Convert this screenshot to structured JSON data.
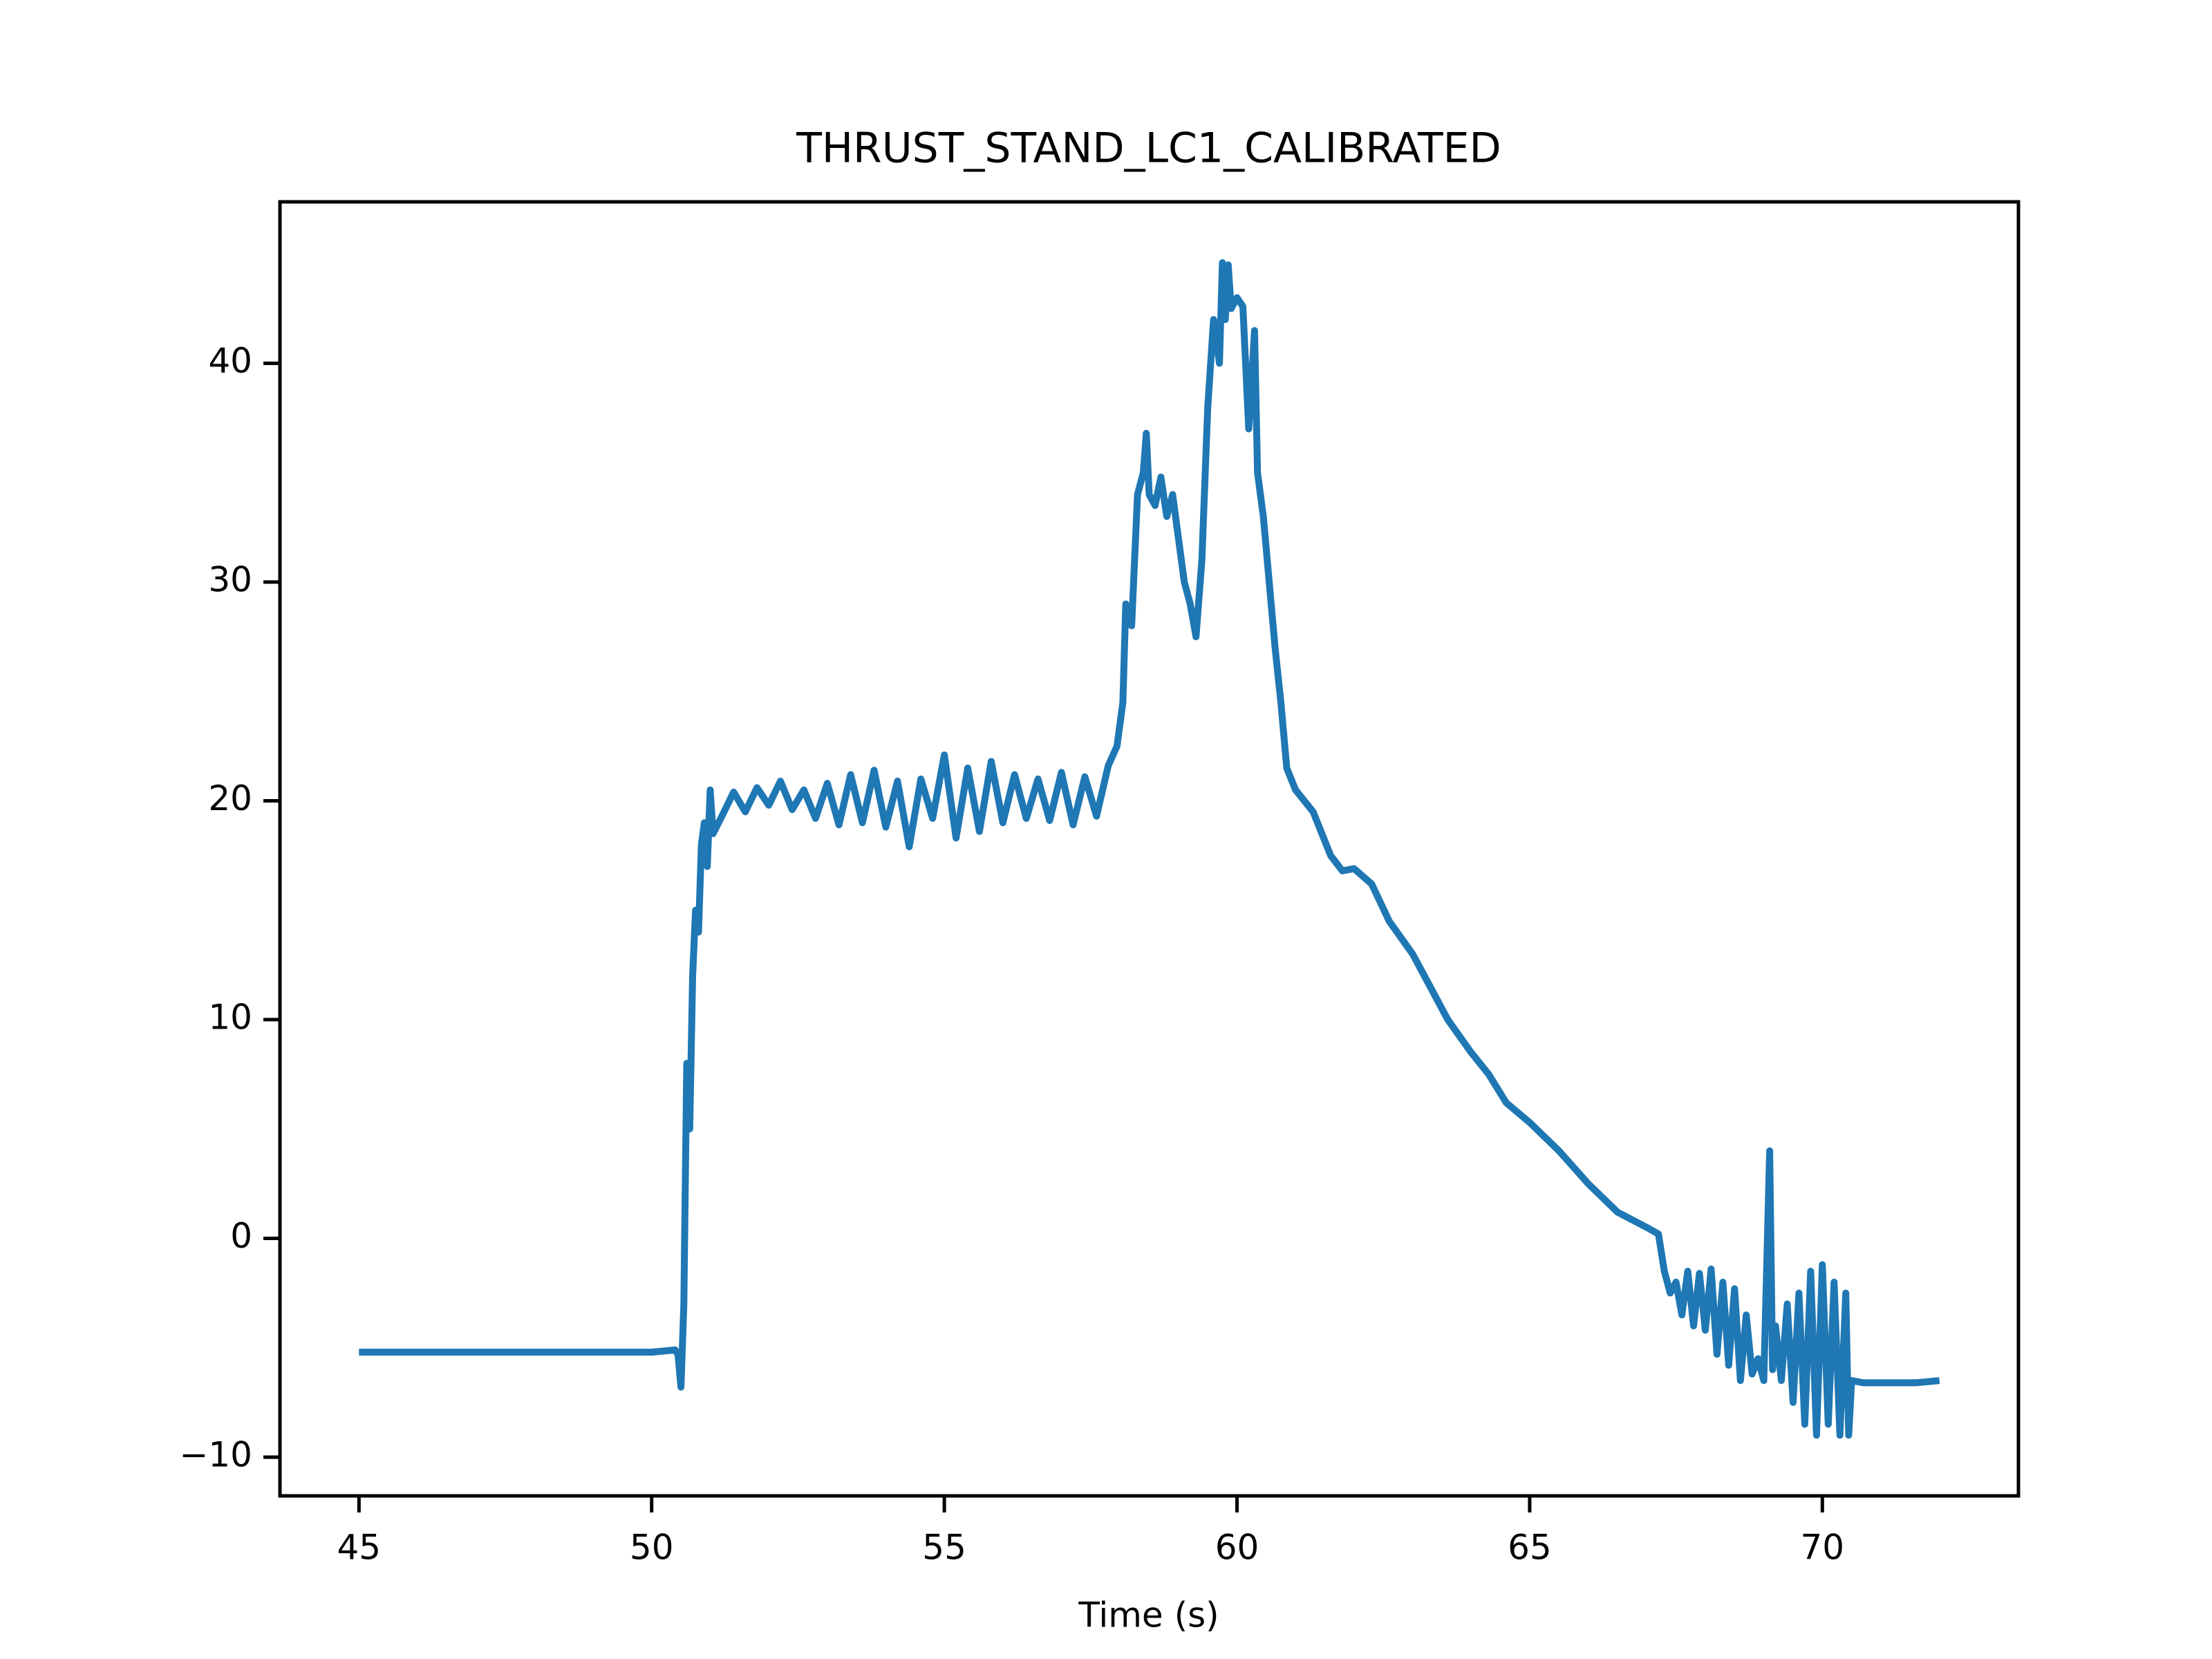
{
  "chart_data": {
    "type": "line",
    "title": "THRUST_STAND_LC1_CALIBRATED",
    "x_label": "Time (s)",
    "x": [
      45,
      46,
      47,
      48,
      49,
      50,
      50.4,
      50.45,
      50.5,
      50.55,
      50.6,
      50.65,
      50.7,
      50.75,
      50.8,
      50.85,
      50.9,
      50.95,
      51.0,
      51.05,
      51.2,
      51.4,
      51.6,
      51.8,
      52.0,
      52.2,
      52.4,
      52.6,
      52.8,
      53.0,
      53.2,
      53.4,
      53.6,
      53.8,
      54.0,
      54.2,
      54.4,
      54.6,
      54.8,
      55.0,
      55.2,
      55.4,
      55.6,
      55.8,
      56.0,
      56.2,
      56.4,
      56.6,
      56.8,
      57.0,
      57.2,
      57.4,
      57.6,
      57.8,
      57.95,
      58.05,
      58.1,
      58.2,
      58.3,
      58.4,
      58.45,
      58.5,
      58.6,
      58.7,
      58.8,
      58.9,
      59.0,
      59.1,
      59.2,
      59.3,
      59.4,
      59.5,
      59.6,
      59.7,
      59.75,
      59.8,
      59.85,
      59.9,
      60.0,
      60.1,
      60.2,
      60.3,
      60.35,
      60.45,
      60.55,
      60.65,
      60.75,
      60.85,
      61.0,
      61.3,
      61.6,
      61.8,
      62.0,
      62.3,
      62.6,
      63.0,
      63.3,
      63.6,
      64.0,
      64.3,
      64.6,
      65.0,
      65.5,
      66.0,
      66.5,
      67.0,
      67.2,
      67.3,
      67.4,
      67.5,
      67.6,
      67.7,
      67.8,
      67.9,
      68.0,
      68.1,
      68.2,
      68.3,
      68.4,
      68.5,
      68.6,
      68.7,
      68.8,
      68.9,
      69.0,
      69.1,
      69.15,
      69.2,
      69.3,
      69.4,
      69.5,
      69.6,
      69.7,
      69.8,
      69.9,
      70.0,
      70.1,
      70.2,
      70.3,
      70.4,
      70.45,
      70.5,
      70.7,
      71.2,
      71.6,
      72.0
    ],
    "series": [
      {
        "color": "#1f77b4",
        "values": [
          -5.2,
          -5.2,
          -5.2,
          -5.2,
          -5.2,
          -5.2,
          -5.1,
          -5.3,
          -6.8,
          -3,
          8,
          5,
          12,
          15,
          14,
          18,
          19,
          17,
          20.5,
          18.5,
          19.3,
          20.4,
          19.5,
          20.6,
          19.8,
          20.9,
          19.6,
          20.5,
          19.2,
          20.8,
          18.9,
          21.2,
          19.0,
          21.4,
          18.8,
          20.9,
          17.9,
          21.0,
          19.2,
          22.1,
          18.3,
          21.5,
          18.6,
          21.8,
          19.0,
          21.2,
          19.2,
          21.0,
          19.1,
          21.3,
          18.9,
          21.1,
          19.3,
          21.6,
          22.5,
          24.5,
          29,
          28,
          34,
          35,
          36.8,
          34,
          33.5,
          34.8,
          33,
          34,
          32,
          30,
          29,
          27.5,
          31,
          38,
          42,
          40,
          44.6,
          42,
          44.5,
          42.5,
          43,
          42.6,
          37,
          41.5,
          35,
          33,
          30,
          27,
          24.5,
          21.5,
          20.5,
          19.5,
          17.5,
          16.8,
          16.9,
          16.2,
          14.5,
          13,
          11.5,
          10.0,
          8.5,
          7.5,
          6.2,
          5.3,
          4,
          2.5,
          1.2,
          0.5,
          0.2,
          -1.5,
          -2.5,
          -2,
          -3.5,
          -1.5,
          -4,
          -1.6,
          -4.2,
          -1.4,
          -5.3,
          -2,
          -5.8,
          -2.3,
          -6.5,
          -3.5,
          -6.2,
          -5.5,
          -6.5,
          4.0,
          -6,
          -4,
          -6.5,
          -3,
          -7.5,
          -2.5,
          -8.5,
          -1.5,
          -9,
          -1.2,
          -8.5,
          -2,
          -9,
          -2.5,
          -9,
          -6.5,
          -6.6,
          -6.6,
          -6.6,
          -6.5
        ]
      }
    ],
    "xlim": [
      43.65,
      73.35
    ],
    "ylim": [
      -11.77,
      47.38
    ],
    "xticks": [
      45,
      50,
      55,
      60,
      65,
      70
    ],
    "yticks": [
      {
        "value": -10,
        "label": "−10"
      },
      0,
      10,
      20,
      30,
      40
    ]
  }
}
